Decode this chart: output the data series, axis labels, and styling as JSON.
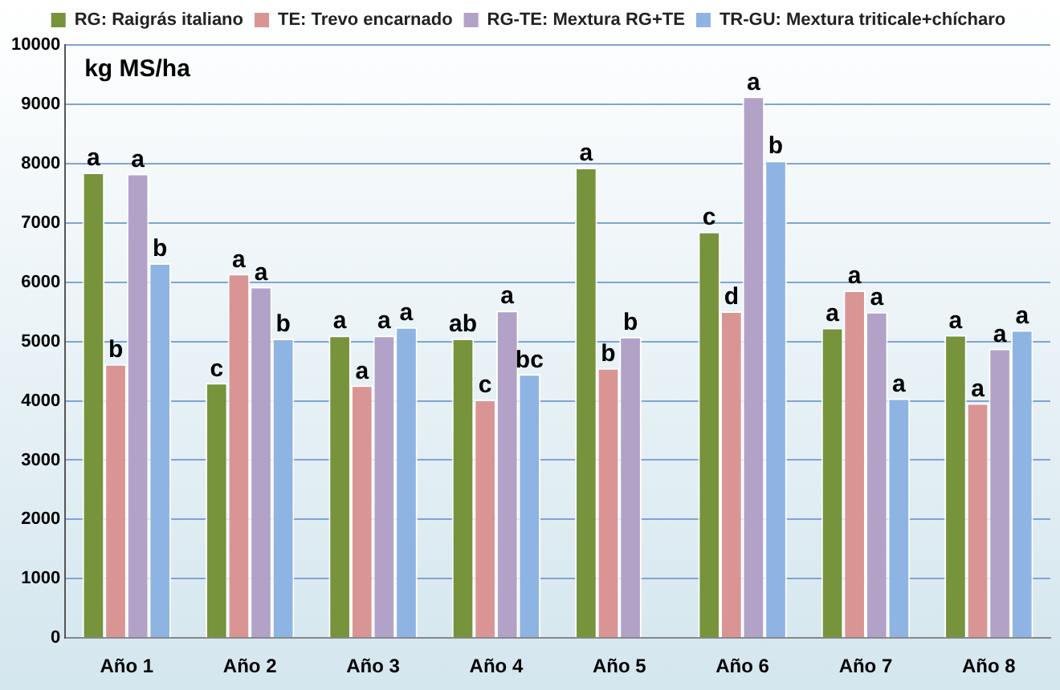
{
  "chart_data": {
    "type": "bar",
    "ylabel": "kg MS/ha",
    "categories": [
      "Año 1",
      "Año 2",
      "Año 3",
      "Año 4",
      "Año 5",
      "Año 6",
      "Año 7",
      "Año 8"
    ],
    "series": [
      {
        "name": "RG: Raigrás italiano",
        "color": "#77933c",
        "values": [
          7850,
          4300,
          5100,
          5050,
          7930,
          6850,
          5230,
          5110
        ],
        "value_labels": [
          "a",
          "c",
          "a",
          "ab",
          "a",
          "c",
          "a",
          "a"
        ]
      },
      {
        "name": "TE: Trevo encarnado",
        "color": "#d99594",
        "values": [
          4620,
          6140,
          4260,
          4020,
          4550,
          5510,
          5860,
          3960
        ],
        "value_labels": [
          "b",
          "a",
          "a",
          "c",
          "b",
          "d",
          "a",
          "a"
        ]
      },
      {
        "name": "RG-TE: Mextura RG+TE",
        "color": "#b3a2c7",
        "values": [
          7830,
          5920,
          5100,
          5520,
          5080,
          9130,
          5500,
          4880
        ],
        "value_labels": [
          "a",
          "a",
          "a",
          "a",
          "b",
          "a",
          "a",
          "a"
        ]
      },
      {
        "name": "TR-GU: Mextura triticale+chícharo",
        "color": "#8eb4e3",
        "values": [
          6320,
          5050,
          5240,
          4450,
          null,
          8050,
          4040,
          5190
        ],
        "value_labels": [
          "b",
          "b",
          "a",
          "bc",
          null,
          "b",
          "a",
          "a"
        ]
      }
    ],
    "ylim": [
      0,
      10000
    ],
    "yticks": [
      0,
      1000,
      2000,
      3000,
      4000,
      5000,
      6000,
      7000,
      8000,
      9000,
      10000
    ],
    "grid": "y",
    "legend": "top"
  }
}
